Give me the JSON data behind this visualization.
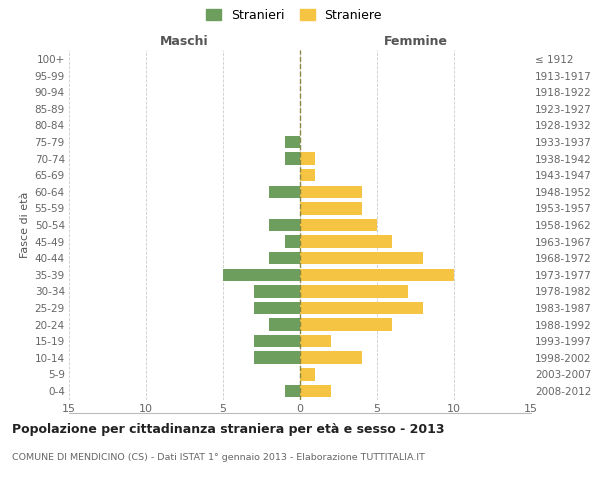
{
  "age_groups": [
    "0-4",
    "5-9",
    "10-14",
    "15-19",
    "20-24",
    "25-29",
    "30-34",
    "35-39",
    "40-44",
    "45-49",
    "50-54",
    "55-59",
    "60-64",
    "65-69",
    "70-74",
    "75-79",
    "80-84",
    "85-89",
    "90-94",
    "95-99",
    "100+"
  ],
  "birth_years": [
    "2008-2012",
    "2003-2007",
    "1998-2002",
    "1993-1997",
    "1988-1992",
    "1983-1987",
    "1978-1982",
    "1973-1977",
    "1968-1972",
    "1963-1967",
    "1958-1962",
    "1953-1957",
    "1948-1952",
    "1943-1947",
    "1938-1942",
    "1933-1937",
    "1928-1932",
    "1923-1927",
    "1918-1922",
    "1913-1917",
    "≤ 1912"
  ],
  "males": [
    1,
    0,
    3,
    3,
    2,
    3,
    3,
    5,
    2,
    1,
    2,
    0,
    2,
    0,
    1,
    1,
    0,
    0,
    0,
    0,
    0
  ],
  "females": [
    2,
    1,
    4,
    2,
    6,
    8,
    7,
    10,
    8,
    6,
    5,
    4,
    4,
    1,
    1,
    0,
    0,
    0,
    0,
    0,
    0
  ],
  "male_color": "#6e9e5e",
  "female_color": "#f5c442",
  "background_color": "#ffffff",
  "grid_color": "#cccccc",
  "center_line_color": "#888844",
  "title": "Popolazione per cittadinanza straniera per età e sesso - 2013",
  "subtitle": "COMUNE DI MENDICINO (CS) - Dati ISTAT 1° gennaio 2013 - Elaborazione TUTTITALIA.IT",
  "ylabel_left": "Fasce di età",
  "header_left": "Maschi",
  "header_right": "Femmine",
  "legend_stranieri": "Stranieri",
  "legend_straniere": "Straniere",
  "xlim": 15,
  "bar_height": 0.75
}
